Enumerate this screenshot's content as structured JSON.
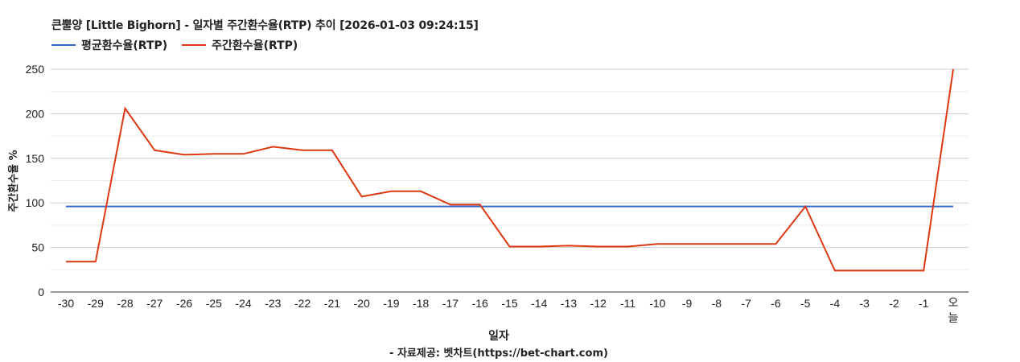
{
  "header": {
    "title": "큰뿔양 [Little Bighorn] - 일자별 주간환수율(RTP) 추이 [2026-01-03 09:24:15]"
  },
  "legend": {
    "items": [
      {
        "label": "평균환수율(RTP)",
        "color": "#3366cc"
      },
      {
        "label": "주간환수율(RTP)",
        "color": "#dc3912"
      }
    ]
  },
  "axes": {
    "ylabel": "주간환수율 %",
    "xlabel": "일자",
    "yticks": [
      0,
      50,
      100,
      150,
      200,
      250
    ]
  },
  "footer": {
    "source": "- 자료제공: 벳차트(https://bet-chart.com)"
  },
  "chart_data": {
    "type": "line",
    "title": "큰뿔양 [Little Bighorn] - 일자별 주간환수율(RTP) 추이 [2026-01-03 09:24:15]",
    "xlabel": "일자",
    "ylabel": "주간환수율 %",
    "ylim": [
      0,
      250
    ],
    "grid": true,
    "minor_grid_step": 25,
    "legend_position": "top-left",
    "categories": [
      "-30",
      "-29",
      "-28",
      "-27",
      "-26",
      "-25",
      "-24",
      "-23",
      "-22",
      "-21",
      "-20",
      "-19",
      "-18",
      "-17",
      "-16",
      "-15",
      "-14",
      "-13",
      "-12",
      "-11",
      "-10",
      "-9",
      "-8",
      "-7",
      "-6",
      "-5",
      "-4",
      "-3",
      "-2",
      "-1",
      "오늘"
    ],
    "series": [
      {
        "name": "평균환수율(RTP)",
        "color": "#3366cc",
        "values": [
          96,
          96,
          96,
          96,
          96,
          96,
          96,
          96,
          96,
          96,
          96,
          96,
          96,
          96,
          96,
          96,
          96,
          96,
          96,
          96,
          96,
          96,
          96,
          96,
          96,
          96,
          96,
          96,
          96,
          96,
          96
        ]
      },
      {
        "name": "주간환수율(RTP)",
        "color": "#dc3912",
        "values": [
          34,
          34,
          206,
          159,
          154,
          155,
          155,
          163,
          159,
          159,
          107,
          113,
          113,
          98,
          98,
          51,
          51,
          52,
          51,
          51,
          54,
          54,
          54,
          54,
          54,
          96,
          24,
          24,
          24,
          24,
          250
        ]
      }
    ]
  }
}
